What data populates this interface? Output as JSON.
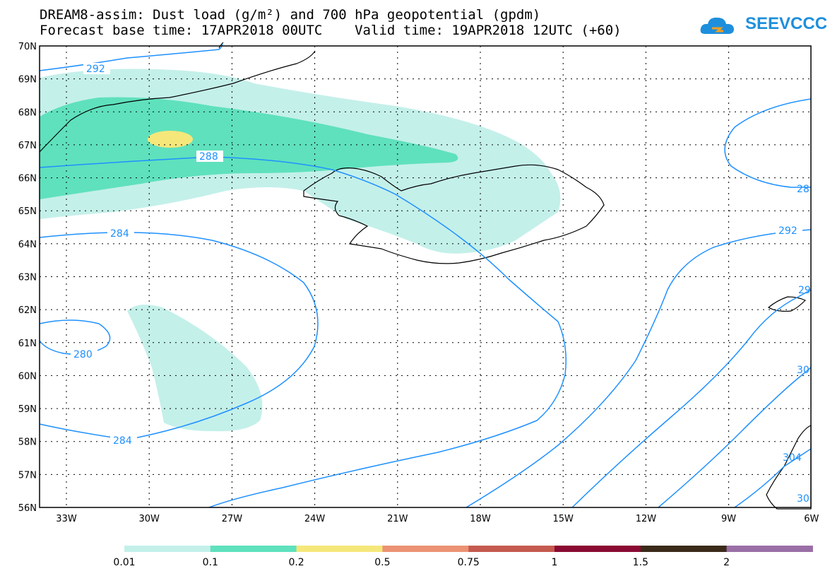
{
  "header": {
    "title_line1": "DREAM8-assim: Dust load (g/m²) and 700 hPa geopotential (gpdm)",
    "title_line2": "Forecast base time: 17APR2018 00UTC    Valid time: 19APR2018 12UTC (+60)",
    "logo_text": "SEEVCCC"
  },
  "map": {
    "lat_labels": [
      "70N",
      "69N",
      "68N",
      "67N",
      "66N",
      "65N",
      "64N",
      "63N",
      "62N",
      "61N",
      "60N",
      "59N",
      "58N",
      "57N",
      "56N"
    ],
    "lon_labels": [
      "33W",
      "30W",
      "27W",
      "24W",
      "21W",
      "18W",
      "15W",
      "12W",
      "9W",
      "6W"
    ],
    "contour_labels": [
      "292",
      "288",
      "284",
      "280",
      "284",
      "292",
      "28",
      "29",
      "30",
      "304",
      "30"
    ],
    "contour_color": "#1e90ff",
    "coast_color": "#000000"
  },
  "colorbar": {
    "colors": [
      "#c4f0ea",
      "#5fe1bd",
      "#f5e77a",
      "#eb9374",
      "#c55a4f",
      "#8a0a32",
      "#3b2a1a",
      "#9a6fa6"
    ],
    "labels": [
      "0.01",
      "0.1",
      "0.2",
      "0.5",
      "0.75",
      "1",
      "1.5",
      "2"
    ]
  }
}
